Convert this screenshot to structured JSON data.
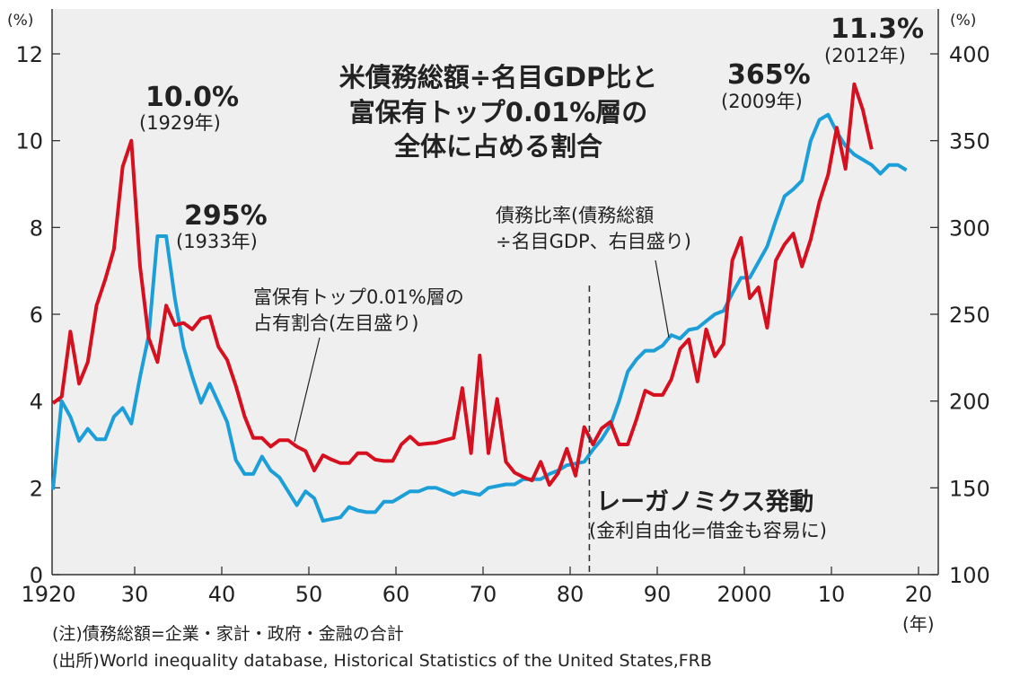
{
  "chart_data": {
    "type": "line",
    "title": [
      "米債務総額÷名目GDP比と",
      "富保有トップ0.01%層の",
      "全体に占める割合"
    ],
    "left_axis": {
      "unit_label": "(%)",
      "range": [
        0,
        12
      ],
      "ticks": [
        0,
        2,
        4,
        6,
        8,
        10,
        12
      ]
    },
    "right_axis": {
      "unit_label": "(%)",
      "range": [
        100,
        400
      ],
      "ticks": [
        100,
        150,
        200,
        250,
        300,
        350,
        400
      ]
    },
    "x_axis": {
      "range": [
        1920,
        2022
      ],
      "ticks": [
        1920,
        1930,
        1940,
        1950,
        1960,
        1970,
        1980,
        1990,
        2000,
        2010,
        2020
      ],
      "tick_labels": [
        "1920",
        "30",
        "40",
        "50",
        "60",
        "70",
        "80",
        "90",
        "2000",
        "10",
        "20"
      ],
      "unit_label": "(年)"
    },
    "grid": false,
    "colors": {
      "wealth": "#d7101f",
      "debt": "#1c9fd9",
      "plot_bg": "#efefef"
    },
    "series": [
      {
        "name": "富保有トップ0.01%層の占有割合(左目盛り)",
        "axis": "left",
        "years": [
          1920,
          1921,
          1922,
          1923,
          1924,
          1925,
          1926,
          1927,
          1928,
          1929,
          1930,
          1931,
          1932,
          1933,
          1934,
          1935,
          1936,
          1937,
          1938,
          1939,
          1940,
          1941,
          1942,
          1943,
          1944,
          1945,
          1946,
          1947,
          1948,
          1949,
          1950,
          1951,
          1952,
          1953,
          1954,
          1955,
          1956,
          1957,
          1958,
          1959,
          1960,
          1961,
          1962,
          1963,
          1964,
          1965,
          1966,
          1967,
          1968,
          1969,
          1970,
          1971,
          1972,
          1973,
          1974,
          1975,
          1976,
          1977,
          1978,
          1979,
          1980,
          1981,
          1982,
          1983,
          1984,
          1985,
          1986,
          1987,
          1988,
          1989,
          1990,
          1991,
          1992,
          1993,
          1994,
          1995,
          1996,
          1997,
          1998,
          1999,
          2000,
          2001,
          2002,
          2003,
          2004,
          2005,
          2006,
          2007,
          2008,
          2009,
          2010,
          2011,
          2012,
          2013,
          2014
        ],
        "values": [
          3.95,
          4.1,
          5.6,
          4.4,
          4.9,
          6.2,
          6.8,
          7.5,
          9.4,
          10.0,
          7.1,
          5.45,
          4.9,
          6.2,
          5.75,
          5.8,
          5.65,
          5.9,
          5.95,
          5.25,
          4.95,
          4.35,
          3.65,
          3.15,
          3.15,
          2.95,
          3.1,
          3.1,
          2.95,
          2.85,
          2.4,
          2.75,
          2.65,
          2.57,
          2.57,
          2.8,
          2.8,
          2.65,
          2.62,
          2.62,
          3.0,
          3.18,
          3.0,
          3.02,
          3.04,
          3.1,
          3.15,
          4.3,
          2.8,
          5.05,
          2.8,
          4.05,
          2.6,
          2.35,
          2.25,
          2.17,
          2.6,
          2.07,
          2.34,
          2.9,
          2.28,
          3.4,
          3.0,
          3.37,
          3.52,
          3.0,
          3.0,
          3.58,
          4.24,
          4.14,
          4.14,
          4.5,
          5.2,
          5.42,
          4.45,
          5.65,
          5.03,
          5.32,
          7.24,
          7.76,
          6.37,
          6.62,
          5.69,
          7.24,
          7.61,
          7.86,
          7.1,
          7.72,
          8.59,
          9.21,
          10.3,
          9.35,
          11.3,
          10.7,
          9.8
        ]
      },
      {
        "name": "債務比率(債務総額÷名目GDP、右目盛り)",
        "axis": "right",
        "years": [
          1920,
          1921,
          1922,
          1923,
          1924,
          1925,
          1926,
          1927,
          1928,
          1929,
          1930,
          1931,
          1932,
          1933,
          1934,
          1935,
          1936,
          1937,
          1938,
          1939,
          1940,
          1941,
          1942,
          1943,
          1944,
          1945,
          1946,
          1947,
          1948,
          1949,
          1950,
          1951,
          1952,
          1953,
          1954,
          1955,
          1956,
          1957,
          1958,
          1959,
          1960,
          1961,
          1962,
          1963,
          1964,
          1965,
          1966,
          1967,
          1968,
          1969,
          1970,
          1971,
          1972,
          1973,
          1974,
          1975,
          1976,
          1977,
          1978,
          1979,
          1980,
          1981,
          1982,
          1983,
          1984,
          1985,
          1986,
          1987,
          1988,
          1989,
          1990,
          1991,
          1992,
          1993,
          1994,
          1995,
          1996,
          1997,
          1998,
          1999,
          2000,
          2001,
          2002,
          2003,
          2004,
          2005,
          2006,
          2007,
          2008,
          2009,
          2010,
          2011,
          2012,
          2013,
          2014,
          2015,
          2016,
          2017,
          2018
        ],
        "values": [
          149,
          200,
          191,
          177,
          184,
          178,
          178,
          191,
          196,
          187,
          214,
          238,
          295,
          295,
          259,
          231,
          214,
          199,
          210,
          199,
          188,
          166,
          158,
          158,
          168,
          160,
          156,
          148,
          140,
          148,
          144,
          131,
          132,
          133,
          139,
          137,
          136,
          136,
          142,
          142,
          145,
          148,
          148,
          150,
          150,
          148,
          146,
          148,
          147,
          146,
          150,
          151,
          152,
          152,
          155,
          155,
          155,
          158,
          160,
          163,
          164,
          165,
          172,
          178,
          186,
          200,
          217,
          224,
          229,
          229,
          232,
          238,
          236,
          241,
          242,
          246,
          250,
          252,
          262,
          271,
          271,
          280,
          289,
          304,
          318,
          322,
          327,
          350,
          362,
          365,
          355,
          347,
          342,
          339,
          336,
          331,
          336,
          336,
          333
        ]
      }
    ],
    "annotations": {
      "peak_wealth_1929": {
        "value": "10.0%",
        "year": "(1929年)"
      },
      "peak_debt_1933": {
        "value": "295%",
        "year": "(1933年)"
      },
      "peak_debt_2009": {
        "value": "365%",
        "year": "(2009年)"
      },
      "peak_wealth_2012": {
        "value": "11.3%",
        "year": "(2012年)"
      },
      "debt_label": [
        "債務比率(債務総額",
        "÷名目GDP、右目盛り)"
      ],
      "wealth_label": [
        "富保有トップ0.01%層の",
        "占有割合(左目盛り)"
      ],
      "reaganomics": {
        "year": 1982,
        "title": "レーガノミクス発動",
        "sub": "(金利自由化=借金も容易に)"
      }
    }
  },
  "notes": {
    "note": "(注)債務総額=企業・家計・政府・金融の合計",
    "source": "(出所)World inequality database, Historical Statistics of the United States,FRB"
  }
}
